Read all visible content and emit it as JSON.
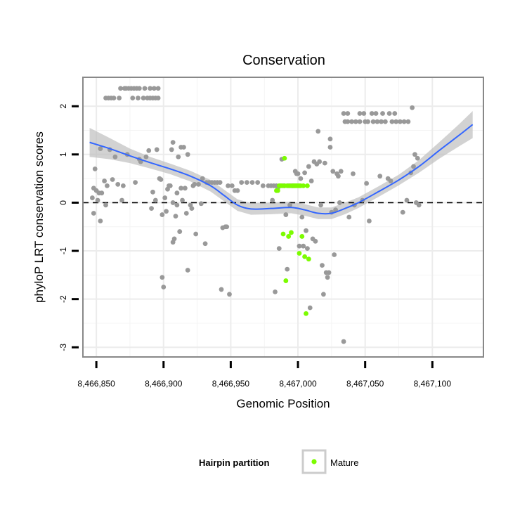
{
  "chart_data": {
    "type": "scatter",
    "title": "Conservation",
    "xlabel": "Genomic Position",
    "ylabel": "phyloP LRT conservation scores",
    "xlim": [
      8466840,
      8467138
    ],
    "ylim": [
      -3.2,
      2.6
    ],
    "x_ticks": [
      {
        "value": 8466850,
        "label": "8,466,850"
      },
      {
        "value": 8466900,
        "label": "8,466,900"
      },
      {
        "value": 8466950,
        "label": "8,466,950"
      },
      {
        "value": 8467000,
        "label": "8,467,000"
      },
      {
        "value": 8467050,
        "label": "8,467,050"
      },
      {
        "value": 8467100,
        "label": "8,467,100"
      }
    ],
    "y_ticks": [
      {
        "value": 2,
        "label": "2"
      },
      {
        "value": 1,
        "label": "1"
      },
      {
        "value": 0,
        "label": "0"
      },
      {
        "value": -1,
        "label": "-1"
      },
      {
        "value": -2,
        "label": "-2"
      },
      {
        "value": -3,
        "label": "-3"
      }
    ],
    "reference_line": {
      "y": 0,
      "style": "dashed",
      "color": "#000000"
    },
    "grid": true,
    "colors": {
      "other_points": "#999999",
      "mature_points": "#7cfc00",
      "smooth_line": "#3366ff",
      "confidence_band": "#bfbfbf",
      "panel_border": "#888888"
    },
    "legend": {
      "title": "Hairpin partition",
      "position": "bottom",
      "entries": [
        {
          "label": "Mature",
          "color": "#7cfc00"
        }
      ]
    },
    "smooth": [
      {
        "x": 8466845,
        "y": 1.25,
        "se": 0.3
      },
      {
        "x": 8466860,
        "y": 1.12,
        "se": 0.22
      },
      {
        "x": 8466875,
        "y": 0.97,
        "se": 0.15
      },
      {
        "x": 8466890,
        "y": 0.83,
        "se": 0.12
      },
      {
        "x": 8466905,
        "y": 0.7,
        "se": 0.11
      },
      {
        "x": 8466920,
        "y": 0.55,
        "se": 0.11
      },
      {
        "x": 8466935,
        "y": 0.35,
        "se": 0.12
      },
      {
        "x": 8466945,
        "y": 0.15,
        "se": 0.12
      },
      {
        "x": 8466955,
        "y": -0.05,
        "se": 0.12
      },
      {
        "x": 8466965,
        "y": -0.13,
        "se": 0.12
      },
      {
        "x": 8466980,
        "y": -0.12,
        "se": 0.12
      },
      {
        "x": 8466995,
        "y": -0.1,
        "se": 0.12
      },
      {
        "x": 8467005,
        "y": -0.15,
        "se": 0.12
      },
      {
        "x": 8467015,
        "y": -0.22,
        "se": 0.12
      },
      {
        "x": 8467025,
        "y": -0.22,
        "se": 0.12
      },
      {
        "x": 8467035,
        "y": -0.12,
        "se": 0.12
      },
      {
        "x": 8467045,
        "y": 0.0,
        "se": 0.11
      },
      {
        "x": 8467060,
        "y": 0.23,
        "se": 0.11
      },
      {
        "x": 8467075,
        "y": 0.47,
        "se": 0.11
      },
      {
        "x": 8467090,
        "y": 0.75,
        "se": 0.13
      },
      {
        "x": 8467105,
        "y": 1.08,
        "se": 0.17
      },
      {
        "x": 8467120,
        "y": 1.4,
        "se": 0.23
      },
      {
        "x": 8467130,
        "y": 1.62,
        "se": 0.28
      }
    ],
    "series": [
      {
        "name": "Other",
        "color": "#999999",
        "points": [
          [
            8466847,
            0.1
          ],
          [
            8466848,
            -0.22
          ],
          [
            8466848,
            0.3
          ],
          [
            8466849,
            0.7
          ],
          [
            8466850,
            0.25
          ],
          [
            8466851,
            0.05
          ],
          [
            8466852,
            0.2
          ],
          [
            8466853,
            1.12
          ],
          [
            8466853,
            -0.38
          ],
          [
            8466854,
            0.2
          ],
          [
            8466856,
            0.45
          ],
          [
            8466857,
            -0.05
          ],
          [
            8466857,
            2.17
          ],
          [
            8466858,
            0.35
          ],
          [
            8466859,
            2.17
          ],
          [
            8466860,
            1.1
          ],
          [
            8466861,
            2.17
          ],
          [
            8466862,
            0.48
          ],
          [
            8466863,
            2.17
          ],
          [
            8466864,
            0.95
          ],
          [
            8466866,
            0.38
          ],
          [
            8466867,
            2.17
          ],
          [
            8466868,
            2.37
          ],
          [
            8466869,
            0.05
          ],
          [
            8466870,
            0.35
          ],
          [
            8466871,
            2.37
          ],
          [
            8466872,
            2.37
          ],
          [
            8466873,
            1.0
          ],
          [
            8466874,
            2.37
          ],
          [
            8466876,
            2.37
          ],
          [
            8466877,
            2.17
          ],
          [
            8466878,
            2.37
          ],
          [
            8466879,
            0.42
          ],
          [
            8466880,
            2.37
          ],
          [
            8466881,
            2.17
          ],
          [
            8466882,
            0.9
          ],
          [
            8466882,
            2.37
          ],
          [
            8466883,
            0.85
          ],
          [
            8466885,
            2.17
          ],
          [
            8466886,
            2.37
          ],
          [
            8466887,
            0.95
          ],
          [
            8466888,
            2.17
          ],
          [
            8466889,
            1.08
          ],
          [
            8466890,
            2.37
          ],
          [
            8466890,
            2.17
          ],
          [
            8466891,
            -0.12
          ],
          [
            8466892,
            2.17
          ],
          [
            8466892,
            0.22
          ],
          [
            8466893,
            2.37
          ],
          [
            8466894,
            2.17
          ],
          [
            8466894,
            0.05
          ],
          [
            8466895,
            1.1
          ],
          [
            8466896,
            2.37
          ],
          [
            8466896,
            2.17
          ],
          [
            8466897,
            0.5
          ],
          [
            8466898,
            0.48
          ],
          [
            8466899,
            -0.25
          ],
          [
            8466899,
            -1.55
          ],
          [
            8466900,
            -1.75
          ],
          [
            8466901,
            0.1
          ],
          [
            8466902,
            -0.18
          ],
          [
            8466903,
            0.28
          ],
          [
            8466904,
            0.35
          ],
          [
            8466905,
            0.35
          ],
          [
            8466906,
            1.1
          ],
          [
            8466907,
            -0.82
          ],
          [
            8466907,
            0.0
          ],
          [
            8466907,
            1.25
          ],
          [
            8466908,
            -0.75
          ],
          [
            8466909,
            -0.28
          ],
          [
            8466910,
            0.2
          ],
          [
            8466910,
            -0.05
          ],
          [
            8466911,
            0.95
          ],
          [
            8466912,
            -0.6
          ],
          [
            8466913,
            1.15
          ],
          [
            8466913,
            0.3
          ],
          [
            8466914,
            0.05
          ],
          [
            8466915,
            1.15
          ],
          [
            8466916,
            0.3
          ],
          [
            8466917,
            -0.22
          ],
          [
            8466918,
            1.0
          ],
          [
            8466918,
            -1.4
          ],
          [
            8466920,
            -0.05
          ],
          [
            8466921,
            -0.12
          ],
          [
            8466922,
            0.35
          ],
          [
            8466923,
            0.38
          ],
          [
            8466924,
            -0.65
          ],
          [
            8466926,
            0.38
          ],
          [
            8466928,
            -0.02
          ],
          [
            8466929,
            0.5
          ],
          [
            8466931,
            -0.85
          ],
          [
            8466932,
            0.42
          ],
          [
            8466934,
            0.42
          ],
          [
            8466936,
            0.42
          ],
          [
            8466938,
            0.42
          ],
          [
            8466940,
            0.42
          ],
          [
            8466942,
            0.42
          ],
          [
            8466943,
            -1.8
          ],
          [
            8466944,
            -0.52
          ],
          [
            8466946,
            -0.5
          ],
          [
            8466947,
            -0.5
          ],
          [
            8466948,
            0.35
          ],
          [
            8466949,
            -1.9
          ],
          [
            8466951,
            0.35
          ],
          [
            8466953,
            0.25
          ],
          [
            8466955,
            0.25
          ],
          [
            8466958,
            0.42
          ],
          [
            8466962,
            0.42
          ],
          [
            8466966,
            0.42
          ],
          [
            8466970,
            0.42
          ],
          [
            8466974,
            0.35
          ],
          [
            8466978,
            0.35
          ],
          [
            8466980,
            0.35
          ],
          [
            8466981,
            0.05
          ],
          [
            8466982,
            0.35
          ],
          [
            8466983,
            -1.85
          ],
          [
            8466984,
            0.35
          ],
          [
            8466985,
            0.3
          ],
          [
            8466986,
            -0.95
          ],
          [
            8466988,
            0.9
          ],
          [
            8466989,
            0.35
          ],
          [
            8466990,
            0.35
          ],
          [
            8466991,
            -0.25
          ],
          [
            8466992,
            -1.38
          ],
          [
            8466993,
            0.35
          ],
          [
            8466994,
            -0.05
          ],
          [
            8466995,
            0.35
          ],
          [
            8466996,
            0.35
          ],
          [
            8466997,
            0.35
          ],
          [
            8466998,
            0.65
          ],
          [
            8466999,
            0.6
          ],
          [
            8467000,
            0.6
          ],
          [
            8467001,
            -0.9
          ],
          [
            8467002,
            0.5
          ],
          [
            8467003,
            -0.3
          ],
          [
            8467004,
            -0.9
          ],
          [
            8467005,
            0.62
          ],
          [
            8467006,
            -0.58
          ],
          [
            8467007,
            -0.95
          ],
          [
            8467008,
            0.75
          ],
          [
            8467009,
            -2.18
          ],
          [
            8467010,
            0.45
          ],
          [
            8467011,
            -0.75
          ],
          [
            8467012,
            0.85
          ],
          [
            8467013,
            -0.8
          ],
          [
            8467014,
            0.8
          ],
          [
            8467015,
            1.48
          ],
          [
            8467016,
            0.85
          ],
          [
            8467017,
            -0.05
          ],
          [
            8467018,
            -1.3
          ],
          [
            8467019,
            -1.9
          ],
          [
            8467020,
            0.82
          ],
          [
            8467021,
            -1.45
          ],
          [
            8467022,
            -1.55
          ],
          [
            8467023,
            -1.45
          ],
          [
            8467024,
            1.32
          ],
          [
            8467024,
            1.15
          ],
          [
            8467025,
            -0.2
          ],
          [
            8467026,
            0.65
          ],
          [
            8467027,
            -1.08
          ],
          [
            8467028,
            -0.15
          ],
          [
            8467029,
            0.6
          ],
          [
            8467030,
            0.55
          ],
          [
            8467031,
            0.0
          ],
          [
            8467032,
            0.65
          ],
          [
            8467034,
            1.85
          ],
          [
            8467034,
            -2.88
          ],
          [
            8467035,
            1.68
          ],
          [
            8467037,
            1.85
          ],
          [
            8467037,
            1.68
          ],
          [
            8467038,
            -0.3
          ],
          [
            8467040,
            1.68
          ],
          [
            8467041,
            0.6
          ],
          [
            8467042,
            -0.05
          ],
          [
            8467043,
            1.68
          ],
          [
            8467046,
            1.85
          ],
          [
            8467046,
            1.68
          ],
          [
            8467048,
            0.05
          ],
          [
            8467049,
            1.85
          ],
          [
            8467050,
            1.68
          ],
          [
            8467051,
            0.4
          ],
          [
            8467052,
            1.68
          ],
          [
            8467053,
            -0.38
          ],
          [
            8467055,
            1.85
          ],
          [
            8467056,
            1.68
          ],
          [
            8467058,
            1.85
          ],
          [
            8467059,
            1.68
          ],
          [
            8467061,
            0.55
          ],
          [
            8467062,
            1.68
          ],
          [
            8467063,
            1.85
          ],
          [
            8467065,
            1.68
          ],
          [
            8467067,
            0.5
          ],
          [
            8467068,
            1.85
          ],
          [
            8467069,
            0.45
          ],
          [
            8467070,
            1.68
          ],
          [
            8467072,
            1.85
          ],
          [
            8467073,
            1.68
          ],
          [
            8467076,
            1.68
          ],
          [
            8467078,
            -0.2
          ],
          [
            8467079,
            1.68
          ],
          [
            8467081,
            0.05
          ],
          [
            8467082,
            1.68
          ],
          [
            8467084,
            0.62
          ],
          [
            8467085,
            1.97
          ],
          [
            8467086,
            0.75
          ],
          [
            8467087,
            1.0
          ],
          [
            8467088,
            0.0
          ],
          [
            8467089,
            0.92
          ],
          [
            8467090,
            -0.05
          ]
        ]
      },
      {
        "name": "Mature",
        "color": "#7cfc00",
        "points": [
          [
            8466984,
            0.25
          ],
          [
            8466985,
            0.25
          ],
          [
            8466986,
            0.35
          ],
          [
            8466987,
            0.35
          ],
          [
            8466988,
            0.35
          ],
          [
            8466989,
            -0.65
          ],
          [
            8466990,
            0.35
          ],
          [
            8466990,
            0.92
          ],
          [
            8466991,
            -1.62
          ],
          [
            8466992,
            0.35
          ],
          [
            8466993,
            -0.7
          ],
          [
            8466994,
            0.35
          ],
          [
            8466995,
            -0.62
          ],
          [
            8466996,
            0.35
          ],
          [
            8466997,
            0.35
          ],
          [
            8466998,
            0.35
          ],
          [
            8466999,
            0.35
          ],
          [
            8467000,
            0.35
          ],
          [
            8467001,
            0.35
          ],
          [
            8467001,
            -1.05
          ],
          [
            8467002,
            0.35
          ],
          [
            8467003,
            -0.7
          ],
          [
            8467004,
            0.35
          ],
          [
            8467005,
            -1.12
          ],
          [
            8467006,
            -2.3
          ],
          [
            8467007,
            0.35
          ],
          [
            8467008,
            -1.17
          ]
        ]
      }
    ]
  }
}
